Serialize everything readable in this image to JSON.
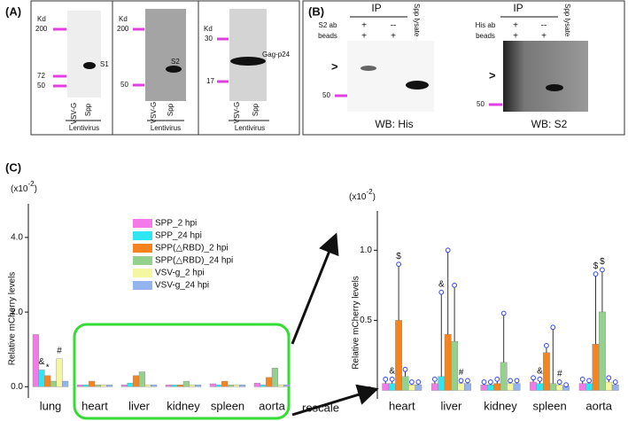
{
  "panel_a": {
    "label": "(A)",
    "blots": [
      {
        "unit": "Kd",
        "markers": [
          200,
          72,
          50
        ],
        "band": "S1",
        "lanes": [
          "VSV-G",
          "Spp"
        ],
        "group": "Lentivirus"
      },
      {
        "unit": "Kd",
        "markers": [
          200,
          50
        ],
        "band": "S2",
        "lanes": [
          "VSV-G",
          "Spp"
        ],
        "group": "Lentivirus"
      },
      {
        "unit": "Kd",
        "markers": [
          30,
          17
        ],
        "band": "Gag-p24",
        "lanes": [
          "VSV-G",
          "Spp"
        ],
        "group": "Lentivirus"
      }
    ]
  },
  "panel_b": {
    "label": "(B)",
    "blots": [
      {
        "ip": "IP",
        "rows": [
          "S2 ab",
          "beads"
        ],
        "signs": [
          [
            "+",
            "--"
          ],
          [
            "+",
            "+"
          ]
        ],
        "lane3": "Spp lysate",
        "arrow": ">",
        "marker": 50,
        "wb": "WB: His"
      },
      {
        "ip": "IP",
        "rows": [
          "His ab",
          "beads"
        ],
        "signs": [
          [
            "+",
            "--"
          ],
          [
            "+",
            "+"
          ]
        ],
        "lane3": "Spp lysate",
        "arrow": ">",
        "marker": 50,
        "wb": "WB: S2"
      }
    ]
  },
  "panel_c": {
    "label": "(C)",
    "rescale": "rescale"
  },
  "chart_data": [
    {
      "type": "bar",
      "y_label": "Relative mCherry levels",
      "y_unit": [
        "(x10",
        "-2",
        ")"
      ],
      "categories": [
        "lung",
        "heart",
        "liver",
        "kidney",
        "spleen",
        "aorta"
      ],
      "series": [
        {
          "name": "SPP_2 hpi",
          "color": "#f47ae9",
          "values": [
            1.4,
            0.05,
            0.05,
            0.05,
            0.08,
            0.1
          ]
        },
        {
          "name": "SPP_24 hpi",
          "color": "#2ee6ef",
          "values": [
            0.45,
            0.05,
            0.1,
            0.05,
            0.05,
            0.05
          ]
        },
        {
          "name": "SPP(△RBD)_2 hpi",
          "color": "#f5841f",
          "values": [
            0.3,
            0.15,
            0.3,
            0.05,
            0.15,
            0.25
          ]
        },
        {
          "name": "SPP(△RBD)_24 hpi",
          "color": "#93d18d",
          "values": [
            0.15,
            0.05,
            0.4,
            0.15,
            0.05,
            0.5
          ]
        },
        {
          "name": "VSV-g_2 hpi",
          "color": "#f5f6a0",
          "values": [
            0.75,
            0.05,
            0.05,
            0.05,
            0.05,
            0.05
          ]
        },
        {
          "name": "VSV-g_24 hpi",
          "color": "#94b4ee",
          "values": [
            0.15,
            0.05,
            0.05,
            0.05,
            0.05,
            0.05
          ]
        }
      ],
      "annotations": [
        {
          "text": "&",
          "category": "lung",
          "series": "SPP_24 hpi"
        },
        {
          "text": "*",
          "category": "lung",
          "series": "SPP(△RBD)_2 hpi"
        },
        {
          "text": "#",
          "category": "lung",
          "series": "VSV-g_2 hpi"
        }
      ],
      "ylim": [
        -0.3,
        4.9
      ],
      "yticks": [
        {
          "value": 0,
          "label": "0.0"
        },
        {
          "value": 2,
          "label": "2.0"
        },
        {
          "value": 4,
          "label": "4.0"
        }
      ],
      "legend": "center"
    },
    {
      "type": "bar",
      "y_label": "Relative mCherry levels",
      "y_unit": [
        "(x10",
        "-2",
        ")"
      ],
      "categories": [
        "heart",
        "liver",
        "kidney",
        "spleen",
        "aorta"
      ],
      "series": [
        {
          "name": "SPP_2 hpi",
          "color": "#f47ae9",
          "values": [
            0.05,
            0.05,
            0.04,
            0.06,
            0.05
          ],
          "errors": [
            0.03,
            0.03,
            0.02,
            0.03,
            0.03
          ]
        },
        {
          "name": "SPP_24 hpi",
          "color": "#2ee6ef",
          "values": [
            0.05,
            0.1,
            0.04,
            0.05,
            0.05
          ],
          "errors": [
            0.03,
            0.6,
            0.02,
            0.03,
            0.02
          ]
        },
        {
          "name": "SPP(△RBD)_2 hpi",
          "color": "#f5841f",
          "values": [
            0.5,
            0.4,
            0.05,
            0.27,
            0.33
          ],
          "errors": [
            0.4,
            0.6,
            0.03,
            0.05,
            0.5
          ]
        },
        {
          "name": "SPP(△RBD)_24 hpi",
          "color": "#93d18d",
          "values": [
            0.1,
            0.35,
            0.2,
            0.05,
            0.56
          ],
          "errors": [
            0.05,
            0.4,
            0.35,
            0.4,
            0.3
          ]
        },
        {
          "name": "VSV-g_2 hpi",
          "color": "#f5f6a0",
          "values": [
            0.04,
            0.05,
            0.05,
            0.04,
            0.06
          ],
          "errors": [
            0.02,
            0.02,
            0.02,
            0.02,
            0.03
          ]
        },
        {
          "name": "VSV-g_24 hpi",
          "color": "#94b4ee",
          "values": [
            0.04,
            0.05,
            0.05,
            0.03,
            0.04
          ],
          "errors": [
            0.02,
            0.02,
            0.02,
            0.01,
            0.02
          ]
        }
      ],
      "annotations": [
        {
          "text": "&",
          "category": "heart",
          "series": "SPP_24 hpi"
        },
        {
          "text": "$",
          "category": "heart",
          "series": "SPP(△RBD)_2 hpi"
        },
        {
          "text": "&",
          "category": "liver",
          "series": "SPP_24 hpi"
        },
        {
          "text": "#",
          "category": "liver",
          "series": "VSV-g_2 hpi"
        },
        {
          "text": "&",
          "category": "spleen",
          "series": "SPP_24 hpi"
        },
        {
          "text": "#",
          "category": "spleen",
          "series": "VSV-g_2 hpi"
        },
        {
          "text": "$",
          "category": "aorta",
          "series": "SPP(△RBD)_2 hpi"
        },
        {
          "text": "$",
          "category": "aorta",
          "series": "SPP(△RBD)_24 hpi"
        }
      ],
      "ylim": [
        -0.06,
        1.28
      ],
      "yticks": [
        {
          "value": 0,
          "label": "0.0"
        },
        {
          "value": 0.5,
          "label": "0.5"
        },
        {
          "value": 1,
          "label": "1.0"
        }
      ]
    }
  ]
}
